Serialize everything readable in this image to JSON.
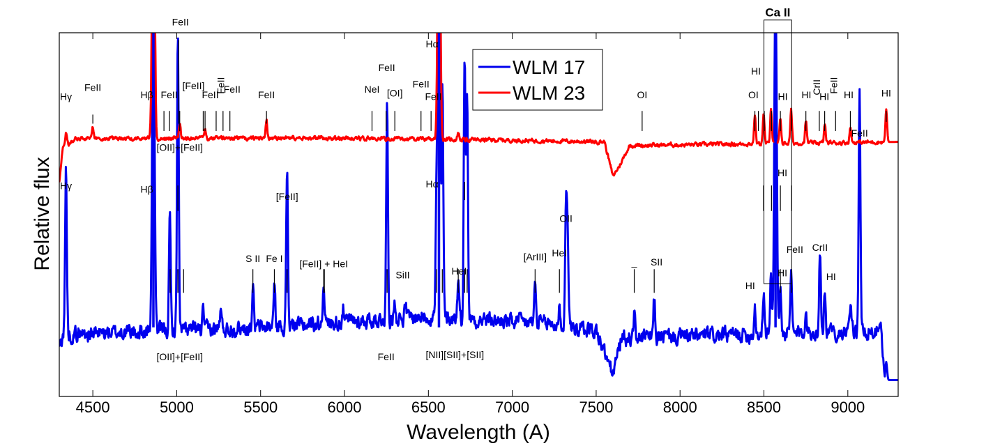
{
  "chart_data": {
    "type": "line",
    "xlabel": "Wavelength (A)",
    "ylabel": "Relative flux",
    "xlim": [
      4300,
      9300
    ],
    "ylim": [
      0,
      10
    ],
    "x_ticks": [
      4500,
      5000,
      5500,
      6000,
      6500,
      7000,
      7500,
      8000,
      8500,
      9000
    ],
    "y_ticks": [],
    "grid": false,
    "legend_position": "top-center",
    "colors": {
      "wlm17": "#0000ee",
      "wlm23": "#ff0000"
    },
    "series": [
      {
        "name": "WLM 17",
        "color": "#0000ee",
        "baseline": 1.9,
        "noise": 0.35,
        "continuum": [
          [
            4300,
            1.3
          ],
          [
            4320,
            1.7
          ],
          [
            5500,
            1.9
          ],
          [
            6500,
            2.2
          ],
          [
            7200,
            2.0
          ],
          [
            7500,
            1.8
          ],
          [
            7600,
            0.6
          ],
          [
            7650,
            1.6
          ],
          [
            9200,
            1.8
          ],
          [
            9220,
            0.45
          ],
          [
            9300,
            0.45
          ]
        ],
        "lines": [
          [
            4340,
            4.6
          ],
          [
            4861,
            10
          ],
          [
            4959,
            3.2
          ],
          [
            5007,
            8.2
          ],
          [
            5158,
            0.5
          ],
          [
            5262,
            0.5
          ],
          [
            5454,
            1.1
          ],
          [
            5582,
            1.1
          ],
          [
            5658,
            4.3
          ],
          [
            5876,
            1.2
          ],
          [
            5991,
            0.4
          ],
          [
            6254,
            5.9
          ],
          [
            6300,
            0.5
          ],
          [
            6364,
            0.4
          ],
          [
            6548,
            3.0
          ],
          [
            6563,
            10
          ],
          [
            6584,
            6.2
          ],
          [
            6678,
            1.1
          ],
          [
            6716,
            7.2
          ],
          [
            6731,
            6.3
          ],
          [
            7136,
            1.1
          ],
          [
            7281,
            0.5
          ],
          [
            7320,
            3.2
          ],
          [
            7330,
            2.6
          ],
          [
            7727,
            0.7
          ],
          [
            7846,
            1.1
          ],
          [
            8446,
            0.8
          ],
          [
            8498,
            1.2
          ],
          [
            8542,
            1.6
          ],
          [
            8569,
            10
          ],
          [
            8598,
            1.2
          ],
          [
            8662,
            1.6
          ],
          [
            8750,
            0.8
          ],
          [
            8834,
            2.3
          ],
          [
            8862,
            1.1
          ],
          [
            9015,
            0.7
          ],
          [
            9070,
            6.7
          ],
          [
            9229,
            0.5
          ]
        ]
      },
      {
        "name": "WLM 23",
        "color": "#ff0000",
        "baseline": 7.05,
        "noise": 0.09,
        "continuum": [
          [
            4300,
            5.9
          ],
          [
            4320,
            6.8
          ],
          [
            4400,
            7.1
          ],
          [
            6000,
            7.1
          ],
          [
            6900,
            7.05
          ],
          [
            7550,
            7.0
          ],
          [
            7600,
            6.05
          ],
          [
            7640,
            6.35
          ],
          [
            7700,
            6.9
          ],
          [
            9300,
            7.0
          ]
        ],
        "lines": [
          [
            4340,
            0.4
          ],
          [
            4500,
            0.3
          ],
          [
            4861,
            10
          ],
          [
            5018,
            0.4
          ],
          [
            5169,
            0.3
          ],
          [
            5535,
            0.5
          ],
          [
            6563,
            10
          ],
          [
            6678,
            0.2
          ],
          [
            8446,
            0.8
          ],
          [
            8498,
            0.8
          ],
          [
            8542,
            1.0
          ],
          [
            8598,
            0.7
          ],
          [
            8662,
            0.9
          ],
          [
            8750,
            0.6
          ],
          [
            8863,
            0.5
          ],
          [
            9015,
            0.4
          ],
          [
            9229,
            0.9
          ]
        ]
      }
    ],
    "legend": [
      {
        "label": "WLM 17",
        "color": "#0000ee"
      },
      {
        "label": "WLM 23",
        "color": "#ff0000"
      }
    ],
    "ca_ii_box": {
      "label": "Ca II",
      "x1": 8500,
      "x2": 8665,
      "y_top": 10.35,
      "y_bottom": 3.1
    },
    "upper_markers": [
      {
        "x": 4340,
        "y1": 7.55,
        "y2": 7.55,
        "label": "Hγ",
        "lx": 4340,
        "ly": 8.15
      },
      {
        "x": 4500,
        "y1": 7.5,
        "y2": 7.75,
        "label": "FeII",
        "lx": 4500,
        "ly": 8.4
      },
      {
        "x": 4861,
        "y1": 7.55,
        "y2": 7.55,
        "label": "Hβ",
        "lx": 4822,
        "ly": 8.2
      },
      {
        "x": 4924,
        "y1": 7.3,
        "y2": 7.85,
        "label": "FeII",
        "lx": 4955,
        "ly": 8.2
      },
      {
        "x": 4957,
        "y1": 7.3,
        "y2": 7.85,
        "label": "",
        "lx": 0,
        "ly": 0
      },
      {
        "x": 5011,
        "y1": 7.5,
        "y2": 9.8,
        "label": "FeII",
        "lx": 5022,
        "ly": 10.2
      },
      {
        "x": 5018,
        "y1": 7.3,
        "y2": 7.85,
        "label": "",
        "lx": 0,
        "ly": 0
      },
      {
        "x": 5158,
        "y1": 7.3,
        "y2": 7.85,
        "label": "[FeII]",
        "lx": 5100,
        "ly": 8.45
      },
      {
        "x": 5169,
        "y1": 7.3,
        "y2": 7.85,
        "label": "FeII",
        "lx": 5200,
        "ly": 8.2
      },
      {
        "x": 5235,
        "y1": 7.3,
        "y2": 7.85,
        "label": "",
        "lx": 0,
        "ly": 0
      },
      {
        "x": 5276,
        "y1": 7.3,
        "y2": 7.85,
        "label": "FeII",
        "lx": 5283,
        "ly": 8.55,
        "rotate": true
      },
      {
        "x": 5317,
        "y1": 7.3,
        "y2": 7.85,
        "label": "FeII",
        "lx": 5330,
        "ly": 8.35
      },
      {
        "x": 5535,
        "y1": 7.5,
        "y2": 7.85,
        "label": "FeII",
        "lx": 5535,
        "ly": 8.2
      },
      {
        "x": 6164,
        "y1": 7.3,
        "y2": 7.85,
        "label": "NeI",
        "lx": 6164,
        "ly": 8.35
      },
      {
        "x": 6248,
        "y1": 7.3,
        "y2": 7.85,
        "label": "FeII",
        "lx": 6252,
        "ly": 8.95
      },
      {
        "x": 6300,
        "y1": 7.3,
        "y2": 7.85,
        "label": "[OI]",
        "lx": 6300,
        "ly": 8.25
      },
      {
        "x": 6456,
        "y1": 7.3,
        "y2": 7.85,
        "label": "FeII",
        "lx": 6456,
        "ly": 8.5
      },
      {
        "x": 6516,
        "y1": 7.3,
        "y2": 7.85,
        "label": "FeII",
        "lx": 6530,
        "ly": 8.15
      },
      {
        "x": 6563,
        "y1": 7.8,
        "y2": 7.8,
        "label": "Hα",
        "lx": 6522,
        "ly": 9.6
      },
      {
        "x": 7774,
        "y1": 7.3,
        "y2": 7.85,
        "label": "OI",
        "lx": 7774,
        "ly": 8.2
      },
      {
        "x": 8446,
        "y1": 7.3,
        "y2": 7.85,
        "label": "OI",
        "lx": 8437,
        "ly": 8.2
      },
      {
        "x": 8467,
        "y1": 7.3,
        "y2": 7.85,
        "label": "HI",
        "lx": 8452,
        "ly": 8.85
      },
      {
        "x": 8502,
        "y1": 7.3,
        "y2": 7.85,
        "label": "",
        "lx": 0,
        "ly": 0
      },
      {
        "x": 8545,
        "y1": 7.3,
        "y2": 7.85,
        "label": "",
        "lx": 0,
        "ly": 0
      },
      {
        "x": 8598,
        "y1": 7.3,
        "y2": 7.85,
        "label": "HI",
        "lx": 8612,
        "ly": 8.15
      },
      {
        "x": 8665,
        "y1": 7.3,
        "y2": 7.85,
        "label": "",
        "lx": 0,
        "ly": 0
      },
      {
        "x": 8750,
        "y1": 7.3,
        "y2": 7.85,
        "label": "HI",
        "lx": 8753,
        "ly": 8.2
      },
      {
        "x": 8830,
        "y1": 7.3,
        "y2": 7.85,
        "label": "CrII",
        "lx": 8835,
        "ly": 8.5,
        "rotate": true
      },
      {
        "x": 8862,
        "y1": 7.3,
        "y2": 7.85,
        "label": "HI",
        "lx": 8860,
        "ly": 8.15
      },
      {
        "x": 8927,
        "y1": 7.3,
        "y2": 7.85,
        "label": "FeII",
        "lx": 8937,
        "ly": 8.55,
        "rotate": true
      },
      {
        "x": 9015,
        "y1": 7.3,
        "y2": 7.85,
        "label": "HI",
        "lx": 9005,
        "ly": 8.2
      },
      {
        "x": 9229,
        "y1": 7.55,
        "y2": 7.85,
        "label": "HI",
        "lx": 9229,
        "ly": 8.25
      }
    ],
    "lower_markers": [
      {
        "x": 4340,
        "y1": 5.1,
        "y2": 5.1,
        "label": "Hγ",
        "lx": 4340,
        "ly": 5.7
      },
      {
        "x": 4861,
        "y1": 5.1,
        "y2": 5.1,
        "label": "Hβ",
        "lx": 4822,
        "ly": 5.6
      },
      {
        "x": 5007,
        "y1": 5.1,
        "y2": 5.8,
        "label": "[OII]+[FeII]",
        "lx": 5018,
        "ly": 6.75
      },
      {
        "x": 5007,
        "y1": 2.85,
        "y2": 3.5,
        "label": "[OII]+[FeII]",
        "lx": 5018,
        "ly": 1.0
      },
      {
        "x": 4961,
        "y1": 2.85,
        "y2": 3.5,
        "label": "",
        "lx": 0,
        "ly": 0
      },
      {
        "x": 5041,
        "y1": 2.85,
        "y2": 3.5,
        "label": "",
        "lx": 0,
        "ly": 0
      },
      {
        "x": 5658,
        "y1": 4.8,
        "y2": 4.8,
        "label": "[FeII]",
        "lx": 5658,
        "ly": 5.4
      },
      {
        "x": 5454,
        "y1": 2.85,
        "y2": 3.5,
        "label": "S II",
        "lx": 5454,
        "ly": 3.7
      },
      {
        "x": 5582,
        "y1": 2.85,
        "y2": 3.5,
        "label": "Fe I",
        "lx": 5582,
        "ly": 3.7
      },
      {
        "x": 5658,
        "y1": 2.85,
        "y2": 3.5,
        "label": "",
        "lx": 0,
        "ly": 0
      },
      {
        "x": 5876,
        "y1": 2.85,
        "y2": 3.5,
        "label": "[FeII] + HeI",
        "lx": 5876,
        "ly": 3.55
      },
      {
        "x": 5880,
        "y1": 2.85,
        "y2": 3.5,
        "label": "",
        "lx": 0,
        "ly": 0
      },
      {
        "x": 6254,
        "y1": 2.85,
        "y2": 3.5,
        "label": "",
        "lx": 0,
        "ly": 0
      },
      {
        "x": 6254,
        "y1": 2.0,
        "y2": 2.0,
        "label": "FeII",
        "lx": 6248,
        "ly": 1.0
      },
      {
        "x": 6347,
        "y1": 2.9,
        "y2": 2.9,
        "label": "SiII",
        "lx": 6347,
        "ly": 3.25
      },
      {
        "x": 6563,
        "y1": 5.4,
        "y2": 5.4,
        "label": "Hα",
        "lx": 6522,
        "ly": 5.75
      },
      {
        "x": 6548,
        "y1": 2.85,
        "y2": 3.5,
        "label": "",
        "lx": 0,
        "ly": 0
      },
      {
        "x": 6583,
        "y1": 2.85,
        "y2": 3.5,
        "label": "",
        "lx": 0,
        "ly": 0
      },
      {
        "x": 6678,
        "y1": 2.85,
        "y2": 3.5,
        "label": "HeI",
        "lx": 6683,
        "ly": 3.35
      },
      {
        "x": 6716,
        "y1": 2.85,
        "y2": 3.5,
        "label": "",
        "lx": 0,
        "ly": 0
      },
      {
        "x": 6731,
        "y1": 2.85,
        "y2": 3.5,
        "label": "",
        "lx": 0,
        "ly": 0
      },
      {
        "x": 6716,
        "y1": 5.4,
        "y2": 5.9,
        "label": "",
        "lx": 0,
        "ly": 0
      },
      {
        "x": 6650,
        "y1": 1.6,
        "y2": 1.6,
        "label": "[NII][SII]+[SII]",
        "lx": 6658,
        "ly": 1.05
      },
      {
        "x": 7136,
        "y1": 2.85,
        "y2": 3.5,
        "label": "[ArIII]",
        "lx": 7136,
        "ly": 3.75
      },
      {
        "x": 7281,
        "y1": 2.85,
        "y2": 3.5,
        "label": "HeI",
        "lx": 7281,
        "ly": 3.85
      },
      {
        "x": 7320,
        "y1": 4.5,
        "y2": 4.5,
        "label": "OII",
        "lx": 7320,
        "ly": 4.8
      },
      {
        "x": 7727,
        "y1": 2.85,
        "y2": 3.5,
        "label": "_",
        "lx": 7727,
        "ly": 3.6
      },
      {
        "x": 7846,
        "y1": 2.85,
        "y2": 3.5,
        "label": "SII",
        "lx": 7860,
        "ly": 3.6
      },
      {
        "x": 8498,
        "y1": 5.1,
        "y2": 5.8,
        "label": "",
        "lx": 0,
        "ly": 0
      },
      {
        "x": 8545,
        "y1": 5.1,
        "y2": 5.8,
        "label": "",
        "lx": 0,
        "ly": 0
      },
      {
        "x": 8598,
        "y1": 5.1,
        "y2": 5.8,
        "label": "HI",
        "lx": 8610,
        "ly": 6.05
      },
      {
        "x": 8665,
        "y1": 5.1,
        "y2": 5.8,
        "label": "",
        "lx": 0,
        "ly": 0
      },
      {
        "x": 8446,
        "y1": 2.7,
        "y2": 2.7,
        "label": "HI",
        "lx": 8418,
        "ly": 2.95
      },
      {
        "x": 8598,
        "y1": 2.85,
        "y2": 3.5,
        "label": "HI",
        "lx": 8610,
        "ly": 3.3
      },
      {
        "x": 8665,
        "y1": 2.85,
        "y2": 3.5,
        "label": "FeII",
        "lx": 8684,
        "ly": 3.95
      },
      {
        "x": 8834,
        "y1": 3.7,
        "y2": 3.7,
        "label": "CrII",
        "lx": 8834,
        "ly": 4.0
      },
      {
        "x": 8900,
        "y1": 2.9,
        "y2": 2.9,
        "label": "HI",
        "lx": 8900,
        "ly": 3.2
      },
      {
        "x": 9070,
        "y1": 6.9,
        "y2": 6.9,
        "label": "FeII",
        "lx": 9070,
        "ly": 7.15
      }
    ]
  }
}
